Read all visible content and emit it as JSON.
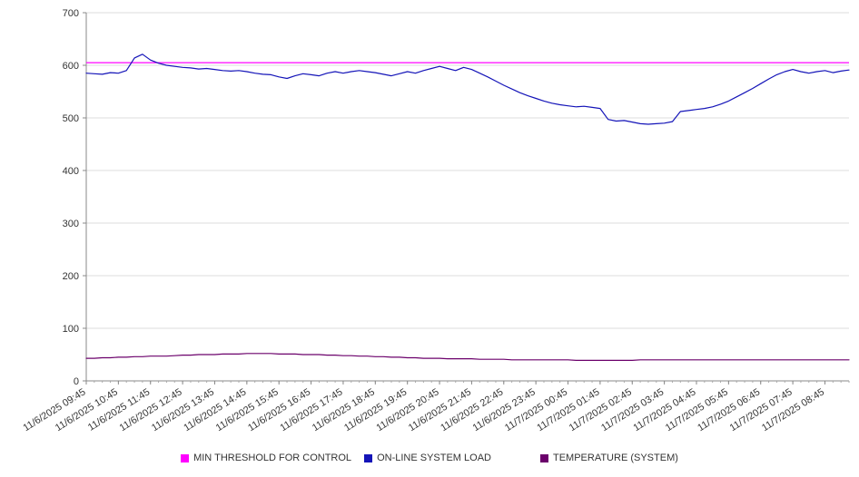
{
  "chart_data": {
    "type": "line",
    "title": "",
    "xlabel": "",
    "ylabel": "",
    "ylim": [
      0,
      700
    ],
    "yticks": [
      0,
      100,
      200,
      300,
      400,
      500,
      600,
      700
    ],
    "grid": true,
    "legend_position": "bottom",
    "points_per_hour": 4,
    "x_tick_labels": [
      "11/6/2025 09:45",
      "11/6/2025 10:45",
      "11/6/2025 11:45",
      "11/6/2025 12:45",
      "11/6/2025 13:45",
      "11/6/2025 14:45",
      "11/6/2025 15:45",
      "11/6/2025 16:45",
      "11/6/2025 17:45",
      "11/6/2025 18:45",
      "11/6/2025 19:45",
      "11/6/2025 20:45",
      "11/6/2025 21:45",
      "11/6/2025 22:45",
      "11/6/2025 23:45",
      "11/7/2025 00:45",
      "11/7/2025 01:45",
      "11/7/2025 02:45",
      "11/7/2025 03:45",
      "11/7/2025 04:45",
      "11/7/2025 05:45",
      "11/7/2025 06:45",
      "11/7/2025 07:45",
      "11/7/2025 08:45"
    ],
    "series": [
      {
        "name": "MIN THRESHOLD FOR CONTROL",
        "color": "#ff00ff",
        "constant": 605
      },
      {
        "name": "ON-LINE SYSTEM LOAD",
        "color": "#1414b8",
        "values": [
          585,
          584,
          583,
          586,
          585,
          590,
          614,
          621,
          610,
          604,
          600,
          598,
          596,
          595,
          593,
          594,
          592,
          590,
          589,
          590,
          588,
          585,
          583,
          582,
          578,
          575,
          580,
          584,
          582,
          580,
          585,
          588,
          585,
          588,
          590,
          588,
          586,
          583,
          580,
          584,
          588,
          585,
          590,
          594,
          598,
          594,
          590,
          596,
          592,
          585,
          578,
          570,
          562,
          555,
          548,
          542,
          537,
          532,
          528,
          525,
          523,
          521,
          522,
          520,
          518,
          497,
          494,
          495,
          492,
          489,
          488,
          489,
          490,
          493,
          512,
          514,
          516,
          518,
          521,
          526,
          532,
          540,
          548,
          556,
          565,
          574,
          582,
          588,
          592,
          588,
          585,
          588,
          590,
          586,
          589,
          591
        ]
      },
      {
        "name": "TEMPERATURE (SYSTEM)",
        "color": "#6b006b",
        "values": [
          43,
          43,
          44,
          44,
          45,
          45,
          46,
          46,
          47,
          47,
          47,
          48,
          49,
          49,
          50,
          50,
          50,
          51,
          51,
          51,
          52,
          52,
          52,
          52,
          51,
          51,
          51,
          50,
          50,
          50,
          49,
          49,
          48,
          48,
          47,
          47,
          46,
          46,
          45,
          45,
          44,
          44,
          43,
          43,
          43,
          42,
          42,
          42,
          42,
          41,
          41,
          41,
          41,
          40,
          40,
          40,
          40,
          40,
          40,
          40,
          40,
          39,
          39,
          39,
          39,
          39,
          39,
          39,
          39,
          40,
          40,
          40,
          40,
          40,
          40,
          40,
          40,
          40,
          40,
          40,
          40,
          40,
          40,
          40,
          40,
          40,
          40,
          40,
          40,
          40,
          40,
          40,
          40,
          40,
          40,
          40
        ]
      }
    ],
    "axis_color": "#888888",
    "gridline_color": "#dddddd",
    "tick_label_color": "#333333"
  }
}
